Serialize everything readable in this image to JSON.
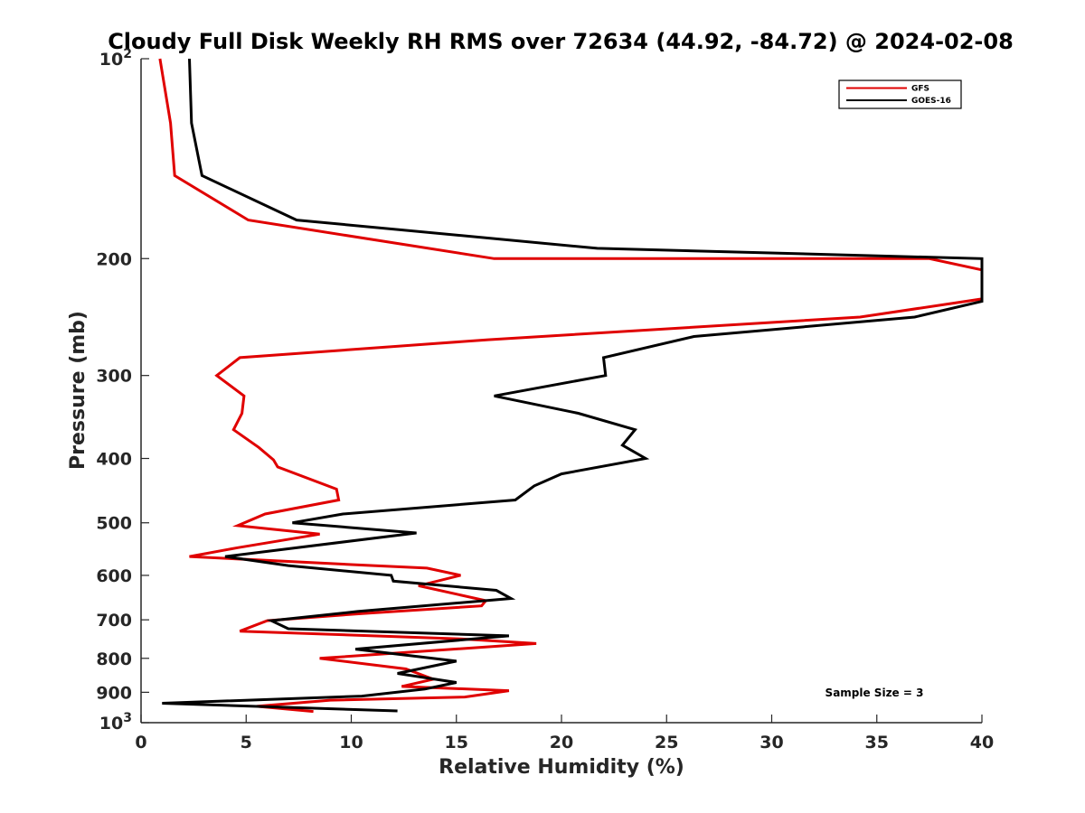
{
  "chart_data": {
    "type": "line",
    "title": "Cloudy Full Disk Weekly RH RMS over 72634 (44.92, -84.72) @ 2024-02-08",
    "xlabel": "Relative Humidity (%)",
    "ylabel": "Pressure (mb)",
    "xlim": [
      0,
      40
    ],
    "ylim": [
      100,
      1000
    ],
    "yscale": "log",
    "y_reversed": true,
    "grid": false,
    "legend_position": "top-right",
    "x_ticks": [
      "0",
      "5",
      "10",
      "15",
      "20",
      "25",
      "30",
      "35",
      "40"
    ],
    "y_ticks": [
      {
        "value": 100,
        "base": "10",
        "exp": "2"
      },
      {
        "value": 200,
        "label": "200"
      },
      {
        "value": 300,
        "label": "300"
      },
      {
        "value": 400,
        "label": "400"
      },
      {
        "value": 500,
        "label": "500"
      },
      {
        "value": 600,
        "label": "600"
      },
      {
        "value": 700,
        "label": "700"
      },
      {
        "value": 800,
        "label": "800"
      },
      {
        "value": 900,
        "label": "900"
      },
      {
        "value": 1000,
        "base": "10",
        "exp": "3"
      }
    ],
    "annotation": "Sample Size = 3",
    "series": [
      {
        "name": "GFS",
        "color": "#e00000",
        "points": [
          [
            0.9,
            100
          ],
          [
            1.4,
            125
          ],
          [
            1.6,
            150
          ],
          [
            5.1,
            175
          ],
          [
            16.8,
            200
          ],
          [
            37.5,
            200
          ],
          [
            40,
            208
          ],
          [
            40,
            230
          ],
          [
            34.2,
            245
          ],
          [
            16.5,
            265
          ],
          [
            4.7,
            282
          ],
          [
            3.6,
            300
          ],
          [
            4.9,
            322
          ],
          [
            4.8,
            342
          ],
          [
            4.4,
            362
          ],
          [
            5.6,
            385
          ],
          [
            6.3,
            402
          ],
          [
            6.5,
            412
          ],
          [
            9.3,
            445
          ],
          [
            9.4,
            462
          ],
          [
            5.9,
            485
          ],
          [
            4.6,
            505
          ],
          [
            8.5,
            520
          ],
          [
            4.6,
            545
          ],
          [
            2.3,
            562
          ],
          [
            10.0,
            578
          ],
          [
            13.6,
            585
          ],
          [
            15.2,
            600
          ],
          [
            13.2,
            622
          ],
          [
            16.4,
            655
          ],
          [
            16.2,
            667
          ],
          [
            10.5,
            685
          ],
          [
            6.0,
            702
          ],
          [
            4.7,
            728
          ],
          [
            15.2,
            748
          ],
          [
            18.8,
            760
          ],
          [
            8.5,
            800
          ],
          [
            12.6,
            830
          ],
          [
            13.9,
            860
          ],
          [
            12.4,
            882
          ],
          [
            17.5,
            895
          ],
          [
            15.4,
            915
          ],
          [
            9.0,
            925
          ],
          [
            5.5,
            945
          ],
          [
            8.2,
            962
          ]
        ]
      },
      {
        "name": "GOES-16",
        "color": "#000000",
        "points": [
          [
            2.3,
            100
          ],
          [
            2.4,
            125
          ],
          [
            2.9,
            150
          ],
          [
            7.4,
            175
          ],
          [
            21.7,
            193
          ],
          [
            40,
            200
          ],
          [
            40,
            232
          ],
          [
            36.8,
            245
          ],
          [
            26.3,
            262
          ],
          [
            22.0,
            282
          ],
          [
            22.1,
            300
          ],
          [
            16.8,
            322
          ],
          [
            20.8,
            342
          ],
          [
            23.5,
            362
          ],
          [
            22.9,
            382
          ],
          [
            24.0,
            400
          ],
          [
            20.0,
            422
          ],
          [
            18.7,
            440
          ],
          [
            17.8,
            462
          ],
          [
            9.6,
            485
          ],
          [
            7.2,
            500
          ],
          [
            13.1,
            518
          ],
          [
            4.0,
            562
          ],
          [
            7.0,
            580
          ],
          [
            11.9,
            600
          ],
          [
            12.0,
            612
          ],
          [
            16.9,
            632
          ],
          [
            17.6,
            650
          ],
          [
            10.3,
            680
          ],
          [
            6.2,
            702
          ],
          [
            7.0,
            722
          ],
          [
            17.5,
            740
          ],
          [
            10.2,
            775
          ],
          [
            15.0,
            808
          ],
          [
            12.2,
            843
          ],
          [
            15.0,
            870
          ],
          [
            13.5,
            890
          ],
          [
            10.5,
            912
          ],
          [
            1.0,
            935
          ],
          [
            12.2,
            960
          ]
        ]
      }
    ]
  }
}
